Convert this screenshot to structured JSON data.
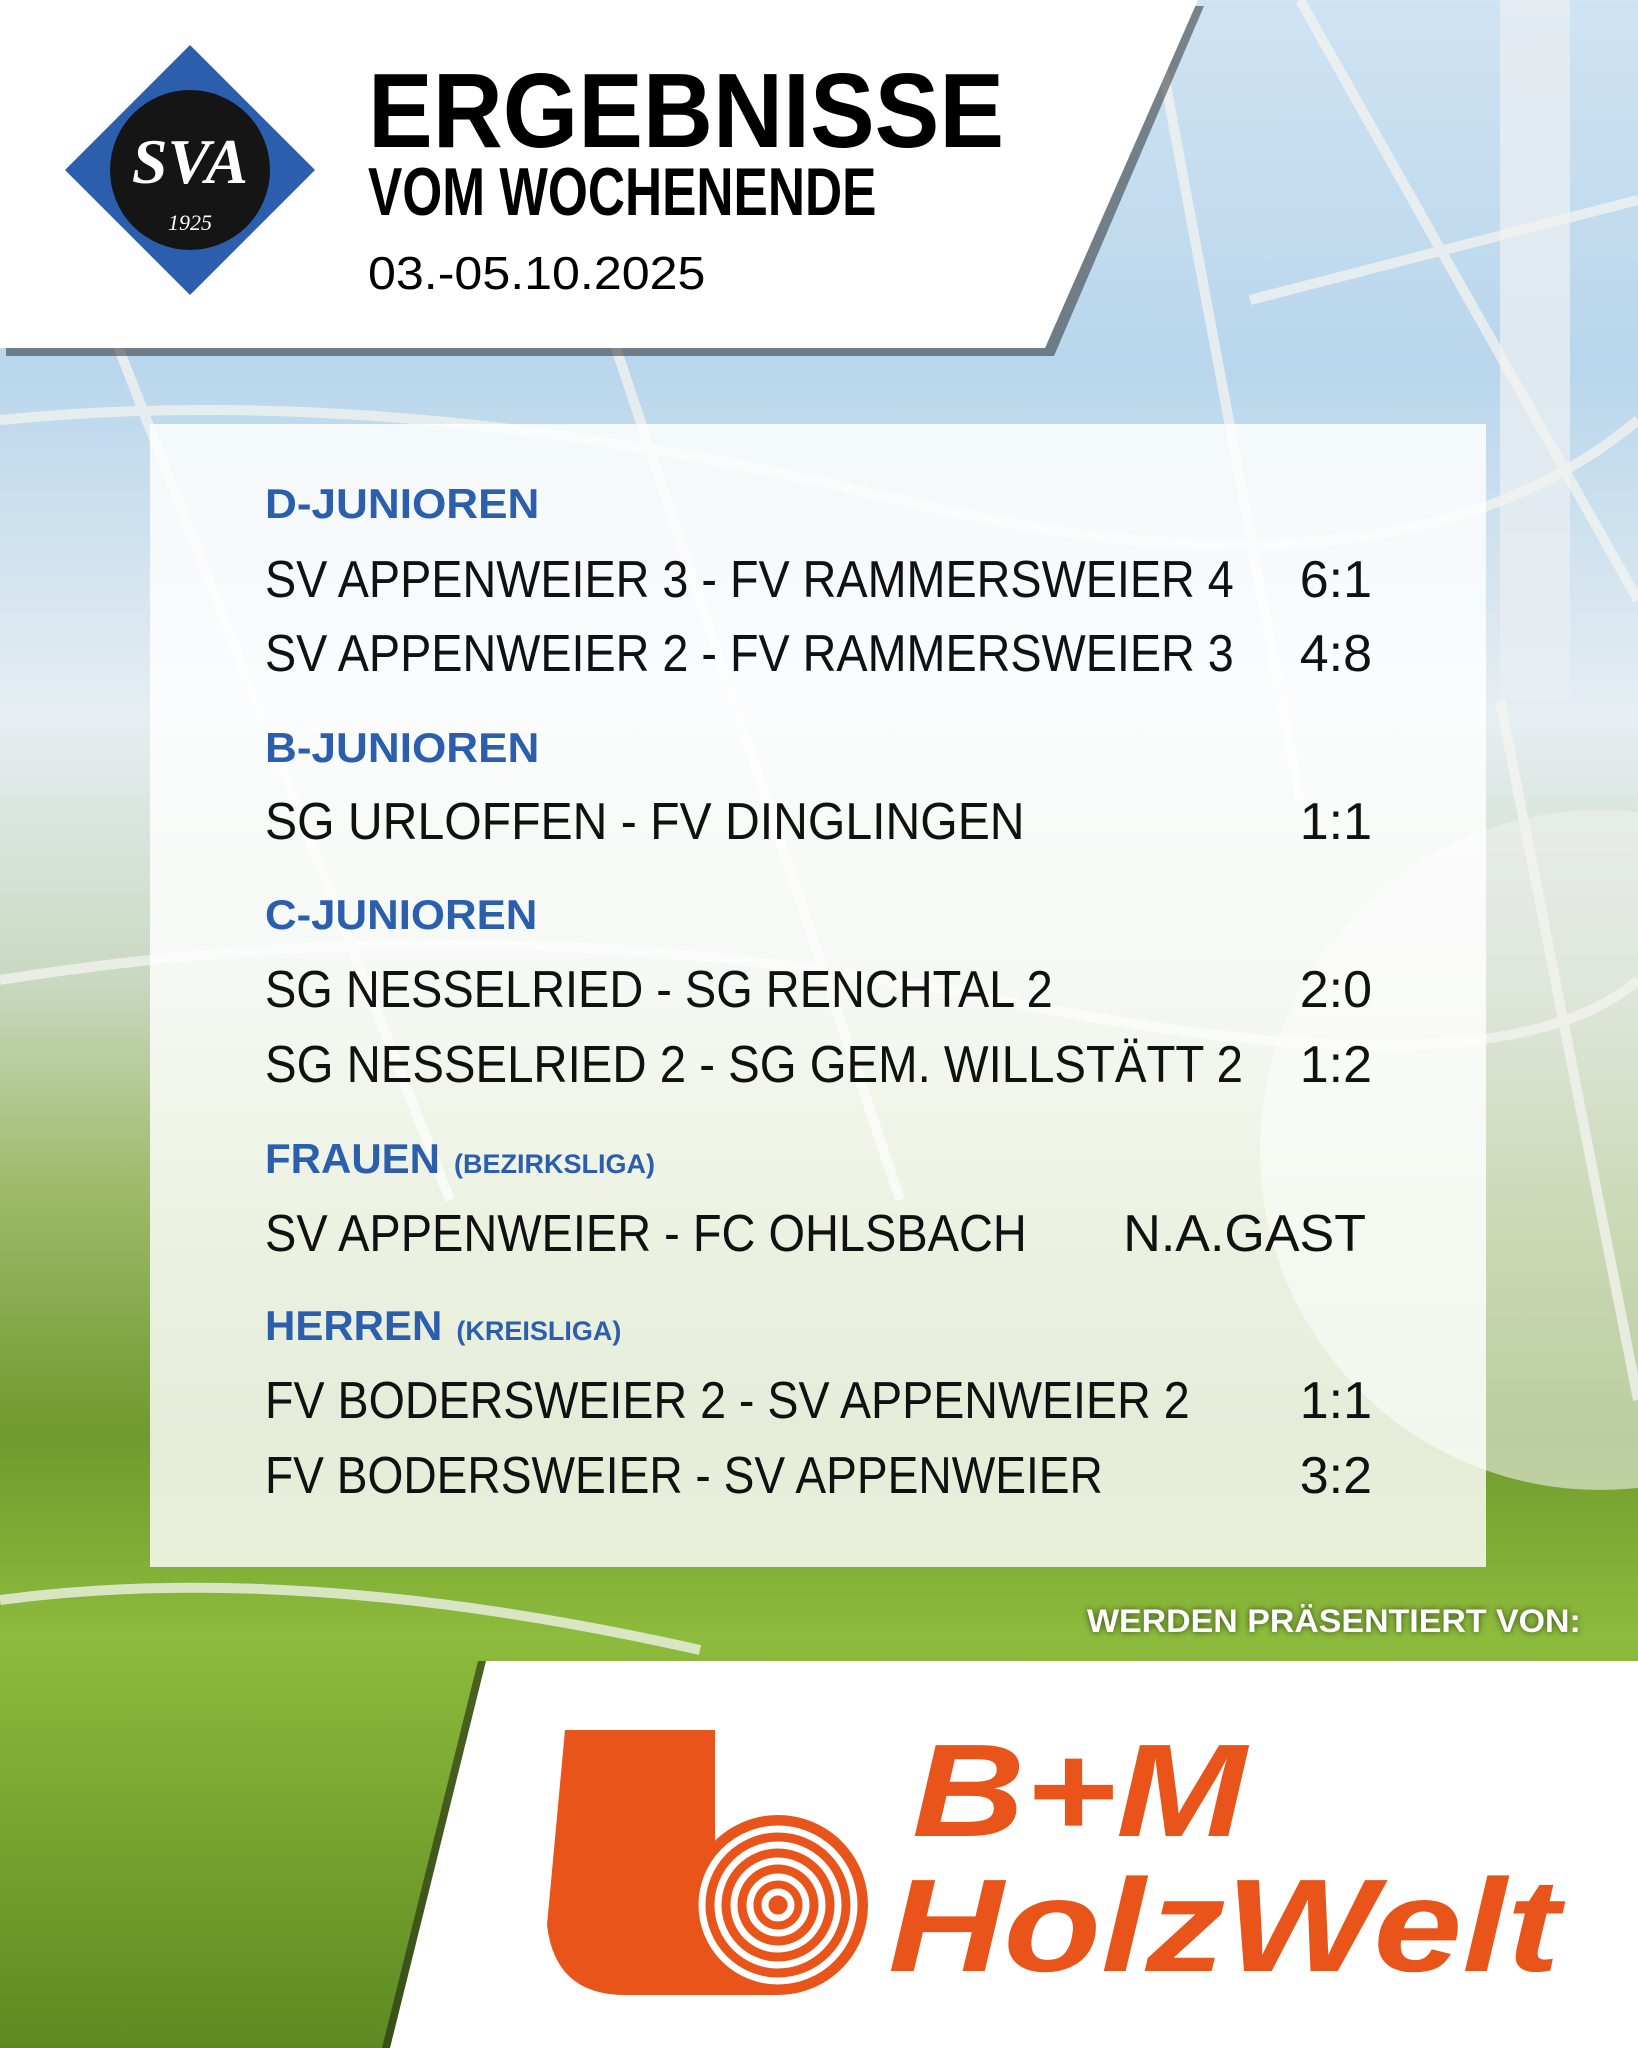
{
  "header": {
    "title": "ERGEBNISSE",
    "subtitle": "VOM WOCHENENDE",
    "date": "03.-05.10.2025",
    "club_logo": {
      "text": "SVA",
      "year": "1925",
      "color": "#2b5fae"
    }
  },
  "sections": [
    {
      "title": "D-JUNIOREN",
      "league": "",
      "matches": [
        {
          "teams": "SV APPENWEIER 3 - FV RAMMERSWEIER 4",
          "score": "6:1"
        },
        {
          "teams": "SV APPENWEIER 2 - FV RAMMERSWEIER 3",
          "score": "4:8"
        }
      ]
    },
    {
      "title": "B-JUNIOREN",
      "league": "",
      "matches": [
        {
          "teams": "SG URLOFFEN - FV DINGLINGEN",
          "score": "1:1"
        }
      ]
    },
    {
      "title": "C-JUNIOREN",
      "league": "",
      "matches": [
        {
          "teams": "SG NESSELRIED - SG RENCHTAL 2",
          "score": "2:0"
        },
        {
          "teams": "SG NESSELRIED 2 - SG GEM. WILLSTÄTT 2",
          "score": "1:2"
        }
      ]
    },
    {
      "title": "FRAUEN",
      "league": "(BEZIRKSLIGA)",
      "matches": [
        {
          "teams": "SV APPENWEIER - FC OHLSBACH",
          "score": "N.A.GAST"
        }
      ]
    },
    {
      "title": "HERREN",
      "league": "(KREISLIGA)",
      "matches": [
        {
          "teams": "FV BODERSWEIER 2 - SV APPENWEIER 2",
          "score": "1:1"
        },
        {
          "teams": "FV BODERSWEIER - SV APPENWEIER",
          "score": "3:2"
        }
      ]
    }
  ],
  "sponsor": {
    "presented_by": "WERDEN PRÄSENTIERT VON:",
    "line1": "B+M",
    "line2": "HolzWelt",
    "color": "#e8541a"
  },
  "accent_color": "#2b5fae"
}
